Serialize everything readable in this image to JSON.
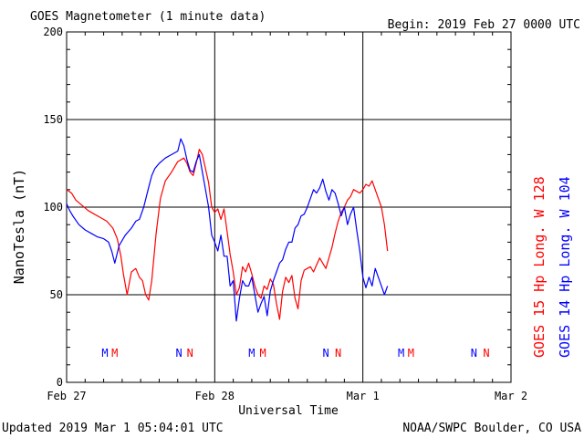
{
  "header": {
    "title": "GOES Magnetometer (1 minute data)",
    "begin": "Begin:  2019 Feb 27 0000 UTC"
  },
  "footer": {
    "updated": "Updated 2019 Mar  1 05:04:01 UTC",
    "source": "NOAA/SWPC Boulder, CO USA"
  },
  "colors": {
    "goes15": "#ff0000",
    "goes14": "#0000ff",
    "grid": "#000000",
    "background": "#ffffff"
  },
  "chart_data": {
    "type": "line",
    "title": "GOES Magnetometer (1 minute data)",
    "xlabel": "Universal Time",
    "ylabel": "NanoTesla (nT)",
    "xlim": [
      0,
      72
    ],
    "x_units": "hours since 2019 Feb 27 0000 UTC",
    "ylim": [
      0,
      200
    ],
    "grid": true,
    "x_tick_labels": [
      {
        "x": 0,
        "label": "Feb 27"
      },
      {
        "x": 24,
        "label": "Feb 28"
      },
      {
        "x": 48,
        "label": "Mar 1"
      },
      {
        "x": 72,
        "label": "Mar 2"
      }
    ],
    "y_ticks": [
      0,
      50,
      100,
      150,
      200
    ],
    "legend": [
      {
        "text": "GOES 15 Hp  Long. W 128",
        "color": "#ff0000"
      },
      {
        "text": "GOES 14 Hp  Long. W 104",
        "color": "#0000ff"
      }
    ],
    "markers": [
      {
        "x": 6.2,
        "label": "M",
        "color": "#0000ff"
      },
      {
        "x": 7.8,
        "label": "M",
        "color": "#ff0000"
      },
      {
        "x": 18.2,
        "label": "N",
        "color": "#0000ff"
      },
      {
        "x": 20.0,
        "label": "N",
        "color": "#ff0000"
      },
      {
        "x": 30.0,
        "label": "M",
        "color": "#0000ff"
      },
      {
        "x": 31.8,
        "label": "M",
        "color": "#ff0000"
      },
      {
        "x": 42.0,
        "label": "N",
        "color": "#0000ff"
      },
      {
        "x": 44.0,
        "label": "N",
        "color": "#ff0000"
      },
      {
        "x": 54.2,
        "label": "M",
        "color": "#0000ff"
      },
      {
        "x": 55.8,
        "label": "M",
        "color": "#ff0000"
      },
      {
        "x": 66.0,
        "label": "N",
        "color": "#0000ff"
      },
      {
        "x": 68.0,
        "label": "N",
        "color": "#ff0000"
      }
    ],
    "series": [
      {
        "name": "GOES 15 Hp",
        "color": "#ff0000",
        "x": [
          0,
          0.8,
          1.5,
          2.5,
          3.5,
          4.5,
          5.5,
          6.5,
          7.5,
          8.2,
          8.8,
          9.2,
          9.8,
          10.5,
          11.2,
          11.8,
          12.3,
          12.8,
          13.3,
          13.8,
          14.5,
          15.2,
          16.0,
          17.0,
          18.0,
          19.0,
          19.5,
          20.0,
          20.5,
          21.0,
          21.5,
          22.0,
          22.5,
          23.0,
          23.5,
          24.0,
          24.5,
          25.0,
          25.5,
          26.0,
          26.5,
          27.0,
          27.5,
          28.0,
          28.5,
          29.0,
          29.5,
          30.0,
          30.5,
          31.0,
          31.5,
          32.0,
          32.5,
          33.0,
          33.5,
          34.0,
          34.5,
          35.0,
          35.5,
          36.0,
          36.5,
          37.0,
          37.5,
          38.0,
          38.5,
          39.0,
          39.5,
          40.0,
          40.5,
          41.0,
          41.5,
          42.0,
          42.5,
          43.0,
          43.5,
          44.0,
          44.5,
          45.0,
          45.5,
          46.0,
          46.5,
          47.0,
          47.5,
          48.0,
          48.5,
          49.0,
          49.5,
          50.0,
          50.5,
          51.0,
          51.5,
          52.0
        ],
        "values": [
          110,
          108,
          104,
          101,
          98,
          96,
          94,
          92,
          88,
          82,
          72,
          62,
          50,
          63,
          65,
          60,
          58,
          50,
          47,
          58,
          85,
          105,
          115,
          120,
          126,
          128,
          125,
          120,
          118,
          125,
          133,
          130,
          122,
          114,
          100,
          97,
          99,
          93,
          99,
          86,
          73,
          63,
          50,
          54,
          66,
          63,
          68,
          62,
          55,
          50,
          48,
          55,
          53,
          59,
          56,
          45,
          36,
          52,
          60,
          57,
          61,
          48,
          42,
          58,
          64,
          65,
          66,
          63,
          67,
          71,
          68,
          65,
          71,
          77,
          85,
          92,
          97,
          100,
          104,
          106,
          110,
          109,
          108,
          110,
          113,
          112,
          115,
          110,
          105,
          100,
          90,
          75
        ]
      },
      {
        "name": "GOES 14 Hp",
        "color": "#0000ff",
        "x": [
          0,
          0.5,
          1.0,
          2.0,
          3.0,
          4.0,
          5.0,
          6.0,
          6.8,
          7.3,
          7.8,
          8.5,
          9.5,
          10.5,
          11.2,
          11.8,
          12.5,
          13.2,
          13.8,
          14.3,
          15.0,
          16.0,
          17.0,
          18.0,
          18.5,
          19.0,
          19.5,
          20.0,
          20.5,
          21.0,
          21.5,
          22.0,
          22.5,
          23.0,
          23.5,
          24.0,
          24.5,
          25.0,
          25.5,
          26.0,
          26.5,
          27.0,
          27.5,
          28.0,
          28.5,
          29.0,
          29.5,
          30.0,
          30.5,
          31.0,
          31.5,
          32.0,
          32.5,
          33.0,
          33.5,
          34.0,
          34.5,
          35.0,
          35.5,
          36.0,
          36.5,
          37.0,
          37.5,
          38.0,
          38.5,
          39.0,
          39.5,
          40.0,
          40.5,
          41.0,
          41.5,
          42.0,
          42.5,
          43.0,
          43.5,
          44.0,
          44.5,
          45.0,
          45.5,
          46.0,
          46.5,
          47.0,
          47.5,
          48.0,
          48.5,
          49.0,
          49.5,
          50.0,
          50.5,
          51.0,
          51.5,
          52.0
        ],
        "values": [
          102,
          98,
          95,
          90,
          87,
          85,
          83,
          82,
          80,
          75,
          68,
          78,
          84,
          88,
          92,
          93,
          100,
          110,
          118,
          122,
          125,
          128,
          130,
          132,
          139,
          135,
          127,
          121,
          120,
          126,
          130,
          120,
          110,
          100,
          84,
          80,
          75,
          84,
          72,
          72,
          55,
          58,
          35,
          48,
          58,
          55,
          55,
          60,
          50,
          40,
          45,
          49,
          38,
          52,
          58,
          63,
          68,
          70,
          76,
          80,
          80,
          88,
          90,
          95,
          96,
          100,
          105,
          110,
          108,
          111,
          116,
          109,
          104,
          110,
          108,
          102,
          95,
          100,
          90,
          96,
          100,
          87,
          75,
          60,
          54,
          60,
          55,
          65,
          60,
          55,
          50,
          55
        ]
      }
    ]
  }
}
